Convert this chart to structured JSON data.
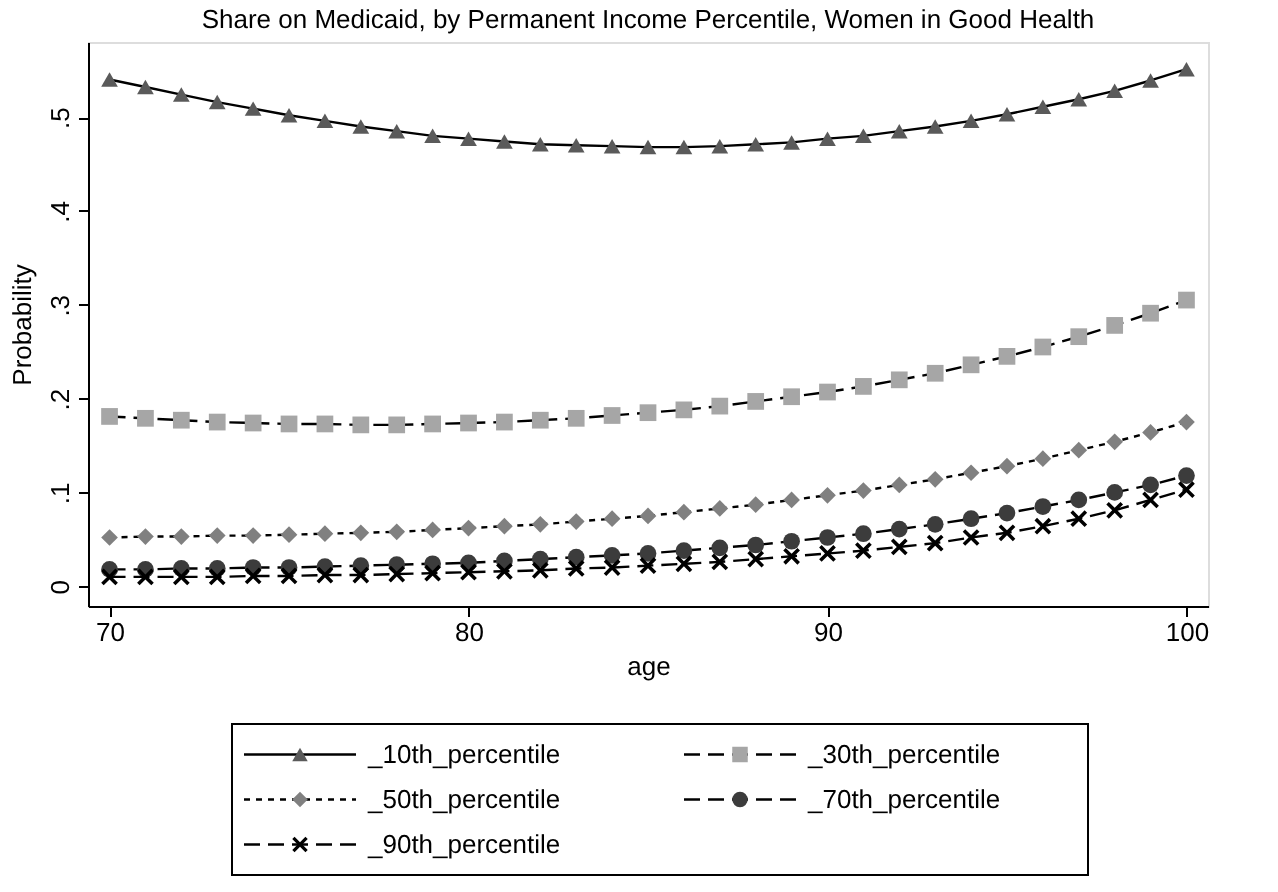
{
  "chart_data": {
    "type": "line",
    "title": "Share on Medicaid, by Permanent Income Percentile, Women in Good Health",
    "xlabel": "age",
    "ylabel": "Probability",
    "x": [
      70,
      71,
      72,
      73,
      74,
      75,
      76,
      77,
      78,
      79,
      80,
      81,
      82,
      83,
      84,
      85,
      86,
      87,
      88,
      89,
      90,
      91,
      92,
      93,
      94,
      95,
      96,
      97,
      98,
      99,
      100
    ],
    "series": [
      {
        "name": "_10th_percentile",
        "color": "#5a5a5a",
        "marker": "triangle",
        "line_style": "solid",
        "values": [
          0.54,
          0.532,
          0.524,
          0.516,
          0.509,
          0.502,
          0.496,
          0.49,
          0.485,
          0.48,
          0.477,
          0.474,
          0.471,
          0.47,
          0.469,
          0.468,
          0.468,
          0.469,
          0.471,
          0.473,
          0.477,
          0.48,
          0.485,
          0.49,
          0.496,
          0.503,
          0.511,
          0.519,
          0.528,
          0.539,
          0.551
        ]
      },
      {
        "name": "_30th_percentile",
        "color": "#a6a6a6",
        "marker": "square",
        "line_style": "dashed",
        "values": [
          0.181,
          0.179,
          0.177,
          0.175,
          0.174,
          0.173,
          0.173,
          0.172,
          0.172,
          0.173,
          0.174,
          0.175,
          0.177,
          0.179,
          0.182,
          0.185,
          0.188,
          0.192,
          0.197,
          0.202,
          0.207,
          0.213,
          0.22,
          0.227,
          0.236,
          0.245,
          0.255,
          0.266,
          0.278,
          0.291,
          0.305
        ]
      },
      {
        "name": "_50th_percentile",
        "color": "#808080",
        "marker": "diamond",
        "line_style": "dotted",
        "values": [
          0.052,
          0.053,
          0.053,
          0.054,
          0.054,
          0.055,
          0.056,
          0.057,
          0.058,
          0.06,
          0.062,
          0.064,
          0.066,
          0.069,
          0.072,
          0.075,
          0.079,
          0.083,
          0.087,
          0.092,
          0.097,
          0.102,
          0.108,
          0.114,
          0.121,
          0.128,
          0.136,
          0.145,
          0.154,
          0.164,
          0.175
        ]
      },
      {
        "name": "_70th_percentile",
        "color": "#3c3c3c",
        "marker": "circle",
        "line_style": "dashed",
        "values": [
          0.018,
          0.018,
          0.019,
          0.019,
          0.02,
          0.02,
          0.021,
          0.022,
          0.023,
          0.024,
          0.025,
          0.027,
          0.029,
          0.031,
          0.033,
          0.035,
          0.038,
          0.041,
          0.044,
          0.048,
          0.052,
          0.056,
          0.061,
          0.066,
          0.072,
          0.078,
          0.085,
          0.092,
          0.1,
          0.108,
          0.118
        ]
      },
      {
        "name": "_90th_percentile",
        "color": "#000000",
        "marker": "cross",
        "line_style": "dashed",
        "values": [
          0.01,
          0.01,
          0.01,
          0.01,
          0.011,
          0.011,
          0.012,
          0.012,
          0.013,
          0.014,
          0.015,
          0.016,
          0.017,
          0.019,
          0.02,
          0.022,
          0.024,
          0.026,
          0.029,
          0.032,
          0.035,
          0.038,
          0.042,
          0.046,
          0.052,
          0.057,
          0.064,
          0.072,
          0.081,
          0.092,
          0.103
        ]
      }
    ],
    "xlim": [
      69.4,
      100.6
    ],
    "xticks": [
      70,
      80,
      90,
      100
    ],
    "ylim": [
      -0.021,
      0.58
    ],
    "yticks": [
      0,
      {
        "value": 0.1,
        "label": ".1"
      },
      {
        "value": 0.2,
        "label": ".2"
      },
      {
        "value": 0.3,
        "label": ".3"
      },
      {
        "value": 0.4,
        "label": ".4"
      },
      {
        "value": 0.5,
        "label": ".5"
      }
    ],
    "grid": false,
    "legend": "bottom"
  }
}
